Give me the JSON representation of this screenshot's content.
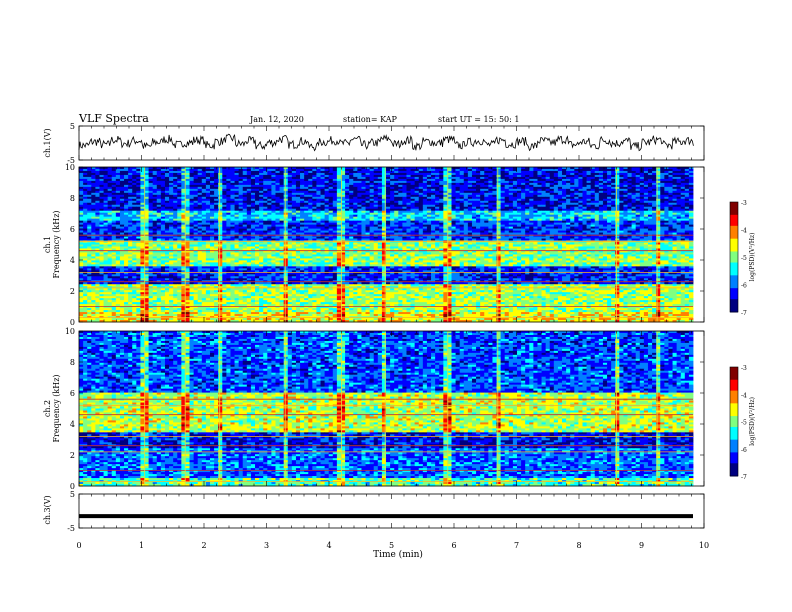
{
  "header": {
    "title": "VLF Spectra",
    "date": "Jan. 12, 2020",
    "station": "station= KAP",
    "start_ut": "start  UT =   15: 50: 1"
  },
  "chart_data": [
    {
      "type": "line",
      "name": "ch1-waveform",
      "ylabel": "ch.1(V)",
      "ylim": [
        -5,
        5
      ],
      "yticks": [
        "5",
        "-5"
      ],
      "xlim": [
        0,
        10
      ],
      "series": [
        {
          "values": [
            -1.2,
            0.6,
            -0.8,
            1.5,
            -0.2,
            1.1,
            -1.6,
            0.4,
            1.8,
            -0.9,
            0.2,
            1.4,
            -1.1,
            0.8,
            2.2,
            -0.5,
            1.0,
            -1.4,
            0.3,
            1.9,
            -0.7,
            0.9,
            -1.8,
            0.5,
            1.2,
            -0.3,
            1.6,
            -1.0,
            0.1,
            2.0,
            -0.6,
            1.3,
            -1.5,
            0.7,
            0.0,
            1.7,
            -1.2,
            0.4,
            1.1,
            -0.9,
            1.5,
            -0.4,
            0.8,
            -1.6,
            1.0,
            0.2,
            1.8,
            -0.8,
            0.6,
            -1.3,
            1.4,
            -0.1,
            0.9,
            -1.7,
            0.3,
            1.6,
            -1.0,
            0.5,
            1.2,
            -0.6
          ]
        }
      ]
    },
    {
      "type": "heatmap",
      "name": "ch1-spectrogram",
      "ylabel": "ch.1\nFrequency (kHz)",
      "ylim": [
        0,
        10
      ],
      "yticks": [
        "0",
        "2",
        "4",
        "6",
        "8",
        "10"
      ],
      "xlim": [
        0,
        10
      ],
      "frequency_bands_khz": [
        {
          "range": [
            0,
            0.6
          ],
          "level": -4.6
        },
        {
          "range": [
            0.6,
            2.4
          ],
          "level": -4.9
        },
        {
          "range": [
            2.4,
            3.6
          ],
          "level": -6.3
        },
        {
          "range": [
            3.6,
            5.2
          ],
          "level": -5.0
        },
        {
          "range": [
            5.2,
            6.6
          ],
          "level": -6.2
        },
        {
          "range": [
            6.6,
            7.2
          ],
          "level": -5.6
        },
        {
          "range": [
            7.2,
            10
          ],
          "level": -6.4
        }
      ]
    },
    {
      "type": "heatmap",
      "name": "ch2-spectrogram",
      "ylabel": "ch.2\nFrequency (kHz)",
      "ylim": [
        0,
        10
      ],
      "yticks": [
        "0",
        "2",
        "4",
        "6",
        "8",
        "10"
      ],
      "xlim": [
        0,
        10
      ],
      "frequency_bands_khz": [
        {
          "range": [
            0,
            0.5
          ],
          "level": -5.2
        },
        {
          "range": [
            0.5,
            2.4
          ],
          "level": -6.0
        },
        {
          "range": [
            2.4,
            3.4
          ],
          "level": -6.4
        },
        {
          "range": [
            3.4,
            6.0
          ],
          "level": -4.8
        },
        {
          "range": [
            6.0,
            10
          ],
          "level": -6.1
        }
      ]
    },
    {
      "type": "line",
      "name": "ch3-waveform",
      "ylabel": "ch.3(V)",
      "ylim": [
        -5,
        5
      ],
      "yticks": [
        "5",
        "-5"
      ],
      "xlabel": "Time (min)",
      "xlim": [
        0,
        10
      ],
      "xticks": [
        "0",
        "1",
        "2",
        "3",
        "4",
        "5",
        "6",
        "7",
        "8",
        "9",
        "10"
      ],
      "series": [
        {
          "values": [
            -1.5,
            -1.5
          ]
        }
      ]
    }
  ],
  "colorbar": {
    "label": "log(PSD)(V²/Hz)",
    "range": [
      -7,
      -3
    ],
    "ticks": [
      "-3",
      "-4",
      "-5",
      "-6",
      "-7"
    ],
    "colors": [
      "#000080",
      "#0000ff",
      "#0080ff",
      "#00ffff",
      "#80ff80",
      "#ffff00",
      "#ff8000",
      "#ff0000",
      "#800000"
    ]
  },
  "spike_times_min": [
    1.05,
    1.7,
    2.25,
    3.3,
    4.2,
    4.9,
    5.9,
    6.7,
    8.6,
    9.25
  ]
}
